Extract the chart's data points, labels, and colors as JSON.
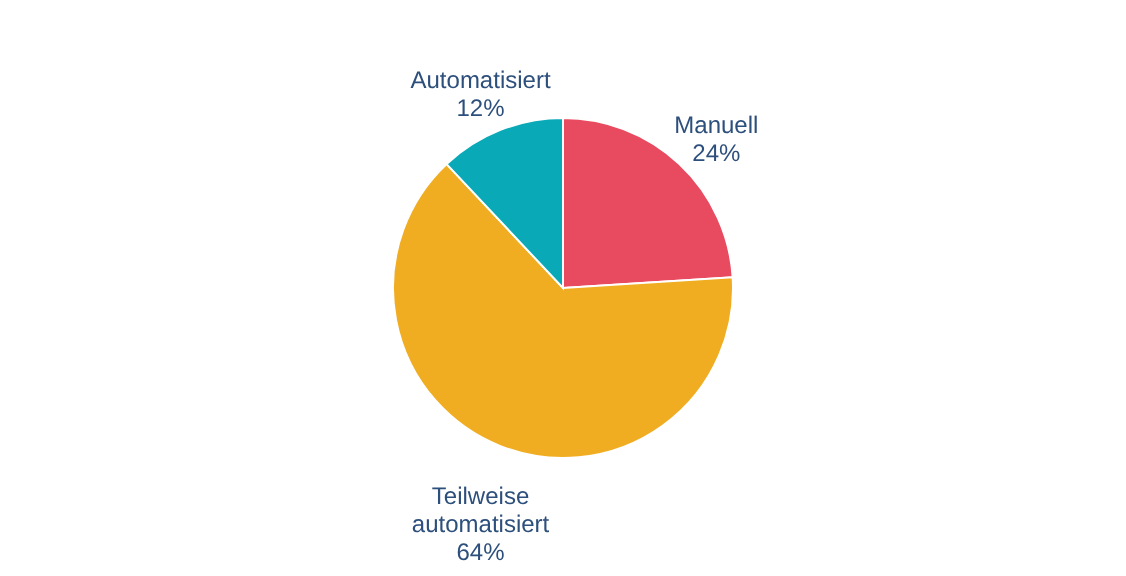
{
  "chart_data": {
    "type": "pie",
    "categories": [
      "Manuell",
      "Teilweise automatisiert",
      "Automatisiert"
    ],
    "values": [
      24,
      64,
      12
    ],
    "colors": [
      "#e84a5f",
      "#f0ad22",
      "#0aa9b8"
    ],
    "value_labels": [
      "24%",
      "64%",
      "12%"
    ]
  }
}
